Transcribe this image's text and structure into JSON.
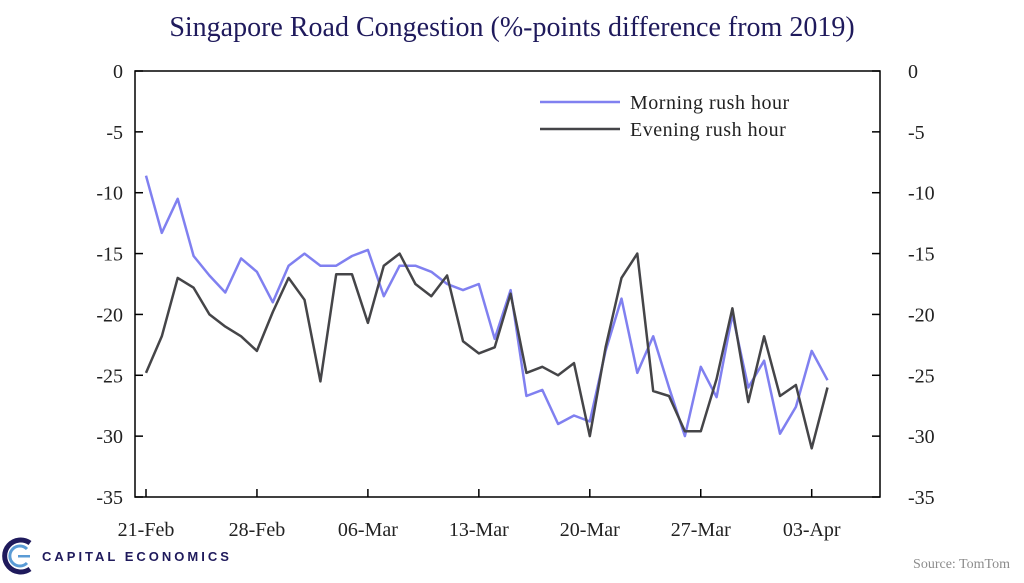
{
  "chart_data": {
    "type": "line",
    "title": "Singapore Road Congestion (%-points difference from 2019)",
    "xlabel": "",
    "ylabel": "",
    "ylim": [
      -35,
      0
    ],
    "yticks": [
      0,
      -5,
      -10,
      -15,
      -20,
      -25,
      -30,
      -35
    ],
    "ytick_labels": [
      "0",
      "-5",
      "-10",
      "-15",
      "-20",
      "-25",
      "-30",
      "-35"
    ],
    "x_tick_labels": [
      "21-Feb",
      "28-Feb",
      "06-Mar",
      "13-Mar",
      "20-Mar",
      "27-Mar",
      "03-Apr"
    ],
    "x_tick_index": [
      0,
      7,
      14,
      21,
      28,
      35,
      42
    ],
    "legend_position": "top-right",
    "grid": false,
    "series": [
      {
        "name": "Morning rush hour",
        "color": "#8080f0",
        "values": [
          -8.6,
          -13.3,
          -10.5,
          -15.2,
          -16.8,
          -18.2,
          -15.4,
          -16.5,
          -19.0,
          -16.0,
          -15.0,
          -16.0,
          -16.0,
          -15.2,
          -14.7,
          -18.5,
          -16.0,
          -16.0,
          -16.5,
          -17.5,
          -18.0,
          -17.5,
          -22.0,
          -18.0,
          -26.7,
          -26.2,
          -29.0,
          -28.3,
          -28.8,
          -23.0,
          -18.7,
          -24.8,
          -21.8,
          -26.0,
          -30.0,
          -24.3,
          -26.8,
          -20.0,
          -26.0,
          -23.8,
          -29.8,
          -27.6,
          -23.0,
          -25.4
        ]
      },
      {
        "name": "Evening rush hour",
        "color": "#454548",
        "values": [
          -24.8,
          -21.8,
          -17.0,
          -17.8,
          -20.0,
          -21.0,
          -21.8,
          -23.0,
          -19.8,
          -17.0,
          -18.8,
          -25.5,
          -16.7,
          -16.7,
          -20.7,
          -16.0,
          -15.0,
          -17.5,
          -18.5,
          -16.8,
          -22.2,
          -23.2,
          -22.7,
          -18.3,
          -24.8,
          -24.3,
          -25.0,
          -24.0,
          -30.0,
          -22.7,
          -17.0,
          -15.0,
          -26.3,
          -26.7,
          -29.6,
          -29.6,
          -25.3,
          -19.5,
          -27.2,
          -21.8,
          -26.7,
          -25.8,
          -31.0,
          -26.0
        ]
      }
    ]
  },
  "footer": {
    "brand": "CAPITAL ECONOMICS",
    "source": "Source: TomTom"
  }
}
